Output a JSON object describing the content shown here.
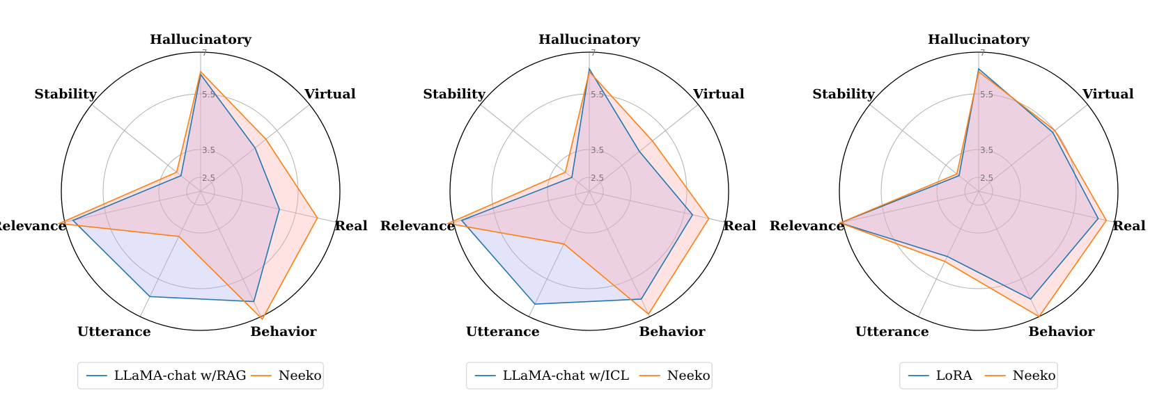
{
  "colors": {
    "series_a": "#1f77b4",
    "series_b": "#ff7f0e",
    "fill_a": "#b0b0f0",
    "fill_b": "#ffb0b0",
    "grid": "#b0b0b0"
  },
  "chart_data": [
    {
      "type": "radar",
      "axes": [
        "Hallucinatory",
        "Virtual",
        "Real",
        "Behavior",
        "Utterance",
        "Relevance",
        "Stability"
      ],
      "radial_ticks": [
        "2.5",
        "3.5",
        "5.5",
        "7"
      ],
      "series": [
        {
          "name": "LLaMA-chat w/RAG",
          "values": [
            6.2,
            4.5,
            4.9,
            6.4,
            6.2,
            6.7,
            2.9
          ]
        },
        {
          "name": "Neeko",
          "values": [
            6.3,
            5.0,
            6.3,
            7.1,
            3.8,
            7.2,
            3.1
          ]
        }
      ],
      "legend_position": "bottom"
    },
    {
      "type": "radar",
      "axes": [
        "Hallucinatory",
        "Virtual",
        "Real",
        "Behavior",
        "Utterance",
        "Relevance",
        "Stability"
      ],
      "radial_ticks": [
        "2.5",
        "3.5",
        "5.5",
        "7"
      ],
      "series": [
        {
          "name": "LLaMA-chat w/ICL",
          "values": [
            6.4,
            4.3,
            5.8,
            6.3,
            6.5,
            6.7,
            2.8
          ]
        },
        {
          "name": "Neeko",
          "values": [
            6.3,
            4.9,
            6.4,
            6.9,
            4.1,
            7.2,
            3.1
          ]
        }
      ],
      "legend_position": "bottom"
    },
    {
      "type": "radar",
      "axes": [
        "Hallucinatory",
        "Virtual",
        "Real",
        "Behavior",
        "Utterance",
        "Relevance",
        "Stability"
      ],
      "radial_ticks": [
        "2.5",
        "3.5",
        "5.5",
        "7"
      ],
      "series": [
        {
          "name": "LoRA",
          "values": [
            6.4,
            5.4,
            6.4,
            6.3,
            4.6,
            7.1,
            2.9
          ]
        },
        {
          "name": "Neeko",
          "values": [
            6.3,
            5.5,
            6.7,
            7.0,
            4.8,
            7.1,
            3.0
          ]
        }
      ],
      "legend_position": "bottom"
    }
  ]
}
